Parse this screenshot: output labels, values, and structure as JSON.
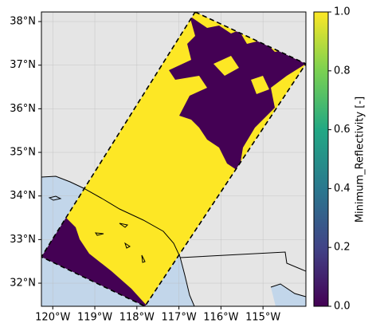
{
  "chart_data": {
    "type": "map",
    "xticks": [
      {
        "value": -120,
        "label": "120°W"
      },
      {
        "value": -119,
        "label": "119°W"
      },
      {
        "value": -118,
        "label": "118°W"
      },
      {
        "value": -117,
        "label": "117°W"
      },
      {
        "value": -116,
        "label": "116°W"
      },
      {
        "value": -115,
        "label": "115°W"
      }
    ],
    "yticks": [
      {
        "value": 32,
        "label": "32°N"
      },
      {
        "value": 33,
        "label": "33°N"
      },
      {
        "value": 34,
        "label": "34°N"
      },
      {
        "value": 35,
        "label": "35°N"
      },
      {
        "value": 36,
        "label": "36°N"
      },
      {
        "value": 37,
        "label": "37°N"
      },
      {
        "value": 38,
        "label": "38°N"
      }
    ],
    "xlim": [
      -120.27,
      -113.98
    ],
    "ylim": [
      31.47,
      38.22
    ],
    "grid": true,
    "colorbar": {
      "label": "Minimum_Reflectivity [-]",
      "lim": [
        0,
        1
      ],
      "ticks": [
        {
          "value": 0,
          "label": "0.0"
        },
        0.2,
        0.4,
        0.6,
        0.8,
        {
          "value": 1,
          "label": "1.0"
        }
      ],
      "colors": [
        "#440154",
        "#414487",
        "#2a788e",
        "#22a884",
        "#7ad151",
        "#fde725"
      ]
    }
  }
}
